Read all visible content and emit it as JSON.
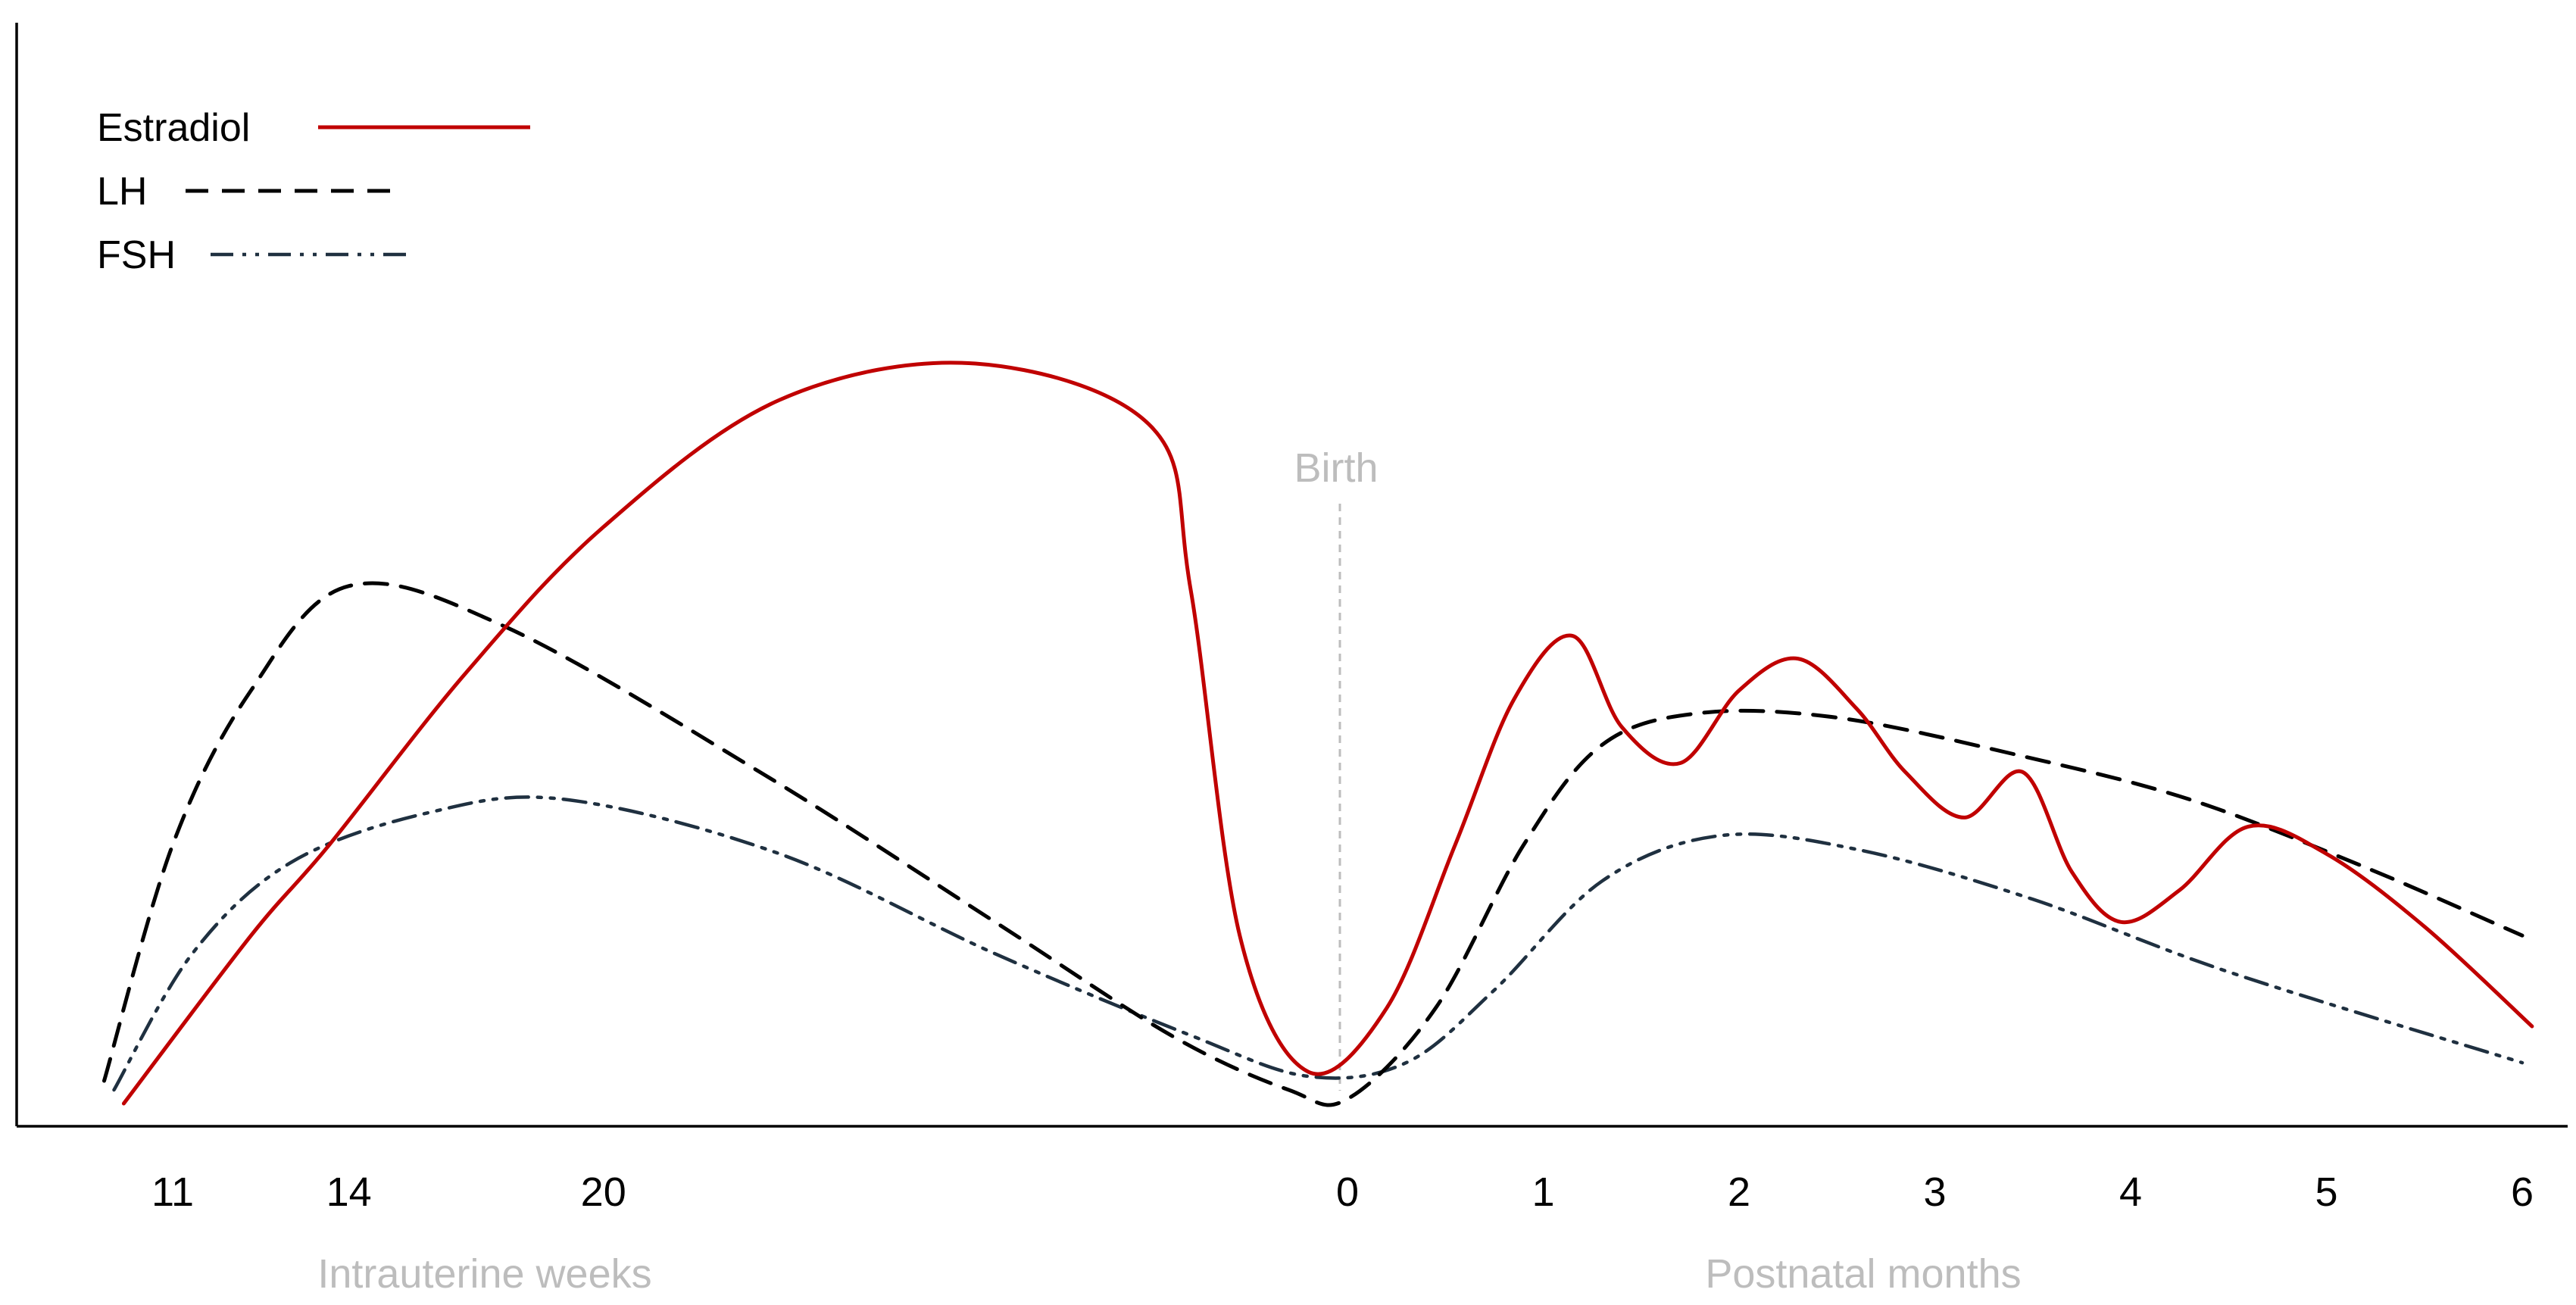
{
  "chart_data": {
    "type": "line",
    "title": "",
    "xlabel": "",
    "ylabel": "",
    "grid": false,
    "legend_placement": "top-left",
    "x_groups": [
      "Intrauterine weeks",
      "Postnatal months"
    ],
    "tick_labels": [
      "11",
      "14",
      "20",
      "0",
      "1",
      "2",
      "3",
      "4",
      "5",
      "6"
    ],
    "annotation": {
      "label": "Birth",
      "x": 0
    },
    "ylim": [
      0,
      10
    ],
    "colors": {
      "estradiol": "#c00000",
      "lh": "#000000",
      "fsh": "#1f3040",
      "birth_line": "#bdbdbd"
    },
    "series": [
      {
        "name": "Estradiol",
        "line_style": "solid",
        "points": [
          {
            "x": -6.25,
            "y": 0.15
          },
          {
            "x": -5.6,
            "y": 2.0
          },
          {
            "x": -5.2,
            "y": 3.0
          },
          {
            "x": -4.5,
            "y": 4.9
          },
          {
            "x": -3.8,
            "y": 6.5
          },
          {
            "x": -2.9,
            "y": 7.9
          },
          {
            "x": -1.9,
            "y": 8.3
          },
          {
            "x": -1.0,
            "y": 7.6
          },
          {
            "x": -0.8,
            "y": 5.8
          },
          {
            "x": -0.55,
            "y": 2.0
          },
          {
            "x": -0.2,
            "y": 0.5
          },
          {
            "x": 0.2,
            "y": 1.2
          },
          {
            "x": 0.55,
            "y": 3.0
          },
          {
            "x": 0.85,
            "y": 4.6
          },
          {
            "x": 1.15,
            "y": 5.3
          },
          {
            "x": 1.4,
            "y": 4.3
          },
          {
            "x": 1.7,
            "y": 3.9
          },
          {
            "x": 2.0,
            "y": 4.7
          },
          {
            "x": 2.3,
            "y": 5.05
          },
          {
            "x": 2.6,
            "y": 4.5
          },
          {
            "x": 2.85,
            "y": 3.8
          },
          {
            "x": 3.15,
            "y": 3.3
          },
          {
            "x": 3.45,
            "y": 3.8
          },
          {
            "x": 3.7,
            "y": 2.7
          },
          {
            "x": 3.95,
            "y": 2.15
          },
          {
            "x": 4.25,
            "y": 2.5
          },
          {
            "x": 4.6,
            "y": 3.2
          },
          {
            "x": 5.0,
            "y": 2.9
          },
          {
            "x": 5.5,
            "y": 2.1
          },
          {
            "x": 6.05,
            "y": 1.0
          }
        ]
      },
      {
        "name": "LH",
        "line_style": "dashed",
        "points": [
          {
            "x": -6.35,
            "y": 0.4
          },
          {
            "x": -6.0,
            "y": 3.0
          },
          {
            "x": -5.6,
            "y": 4.7
          },
          {
            "x": -5.1,
            "y": 5.85
          },
          {
            "x": -4.3,
            "y": 5.4
          },
          {
            "x": -3.0,
            "y": 3.8
          },
          {
            "x": -1.8,
            "y": 2.15
          },
          {
            "x": -0.9,
            "y": 0.9
          },
          {
            "x": -0.3,
            "y": 0.3
          },
          {
            "x": 0.0,
            "y": 0.2
          },
          {
            "x": 0.45,
            "y": 1.2
          },
          {
            "x": 0.9,
            "y": 3.0
          },
          {
            "x": 1.3,
            "y": 4.1
          },
          {
            "x": 1.8,
            "y": 4.45
          },
          {
            "x": 2.5,
            "y": 4.4
          },
          {
            "x": 3.4,
            "y": 4.0
          },
          {
            "x": 4.3,
            "y": 3.5
          },
          {
            "x": 5.2,
            "y": 2.75
          },
          {
            "x": 6.0,
            "y": 2.0
          }
        ]
      },
      {
        "name": "FSH",
        "line_style": "dash-dot-dot",
        "points": [
          {
            "x": -6.3,
            "y": 0.3
          },
          {
            "x": -5.9,
            "y": 1.8
          },
          {
            "x": -5.4,
            "y": 2.8
          },
          {
            "x": -4.7,
            "y": 3.35
          },
          {
            "x": -4.0,
            "y": 3.5
          },
          {
            "x": -2.9,
            "y": 2.9
          },
          {
            "x": -1.8,
            "y": 1.8
          },
          {
            "x": -0.8,
            "y": 0.9
          },
          {
            "x": -0.2,
            "y": 0.45
          },
          {
            "x": 0.3,
            "y": 0.6
          },
          {
            "x": 0.75,
            "y": 1.4
          },
          {
            "x": 1.3,
            "y": 2.6
          },
          {
            "x": 1.9,
            "y": 3.1
          },
          {
            "x": 2.6,
            "y": 2.95
          },
          {
            "x": 3.5,
            "y": 2.4
          },
          {
            "x": 4.5,
            "y": 1.6
          },
          {
            "x": 6.0,
            "y": 0.6
          }
        ]
      }
    ]
  }
}
